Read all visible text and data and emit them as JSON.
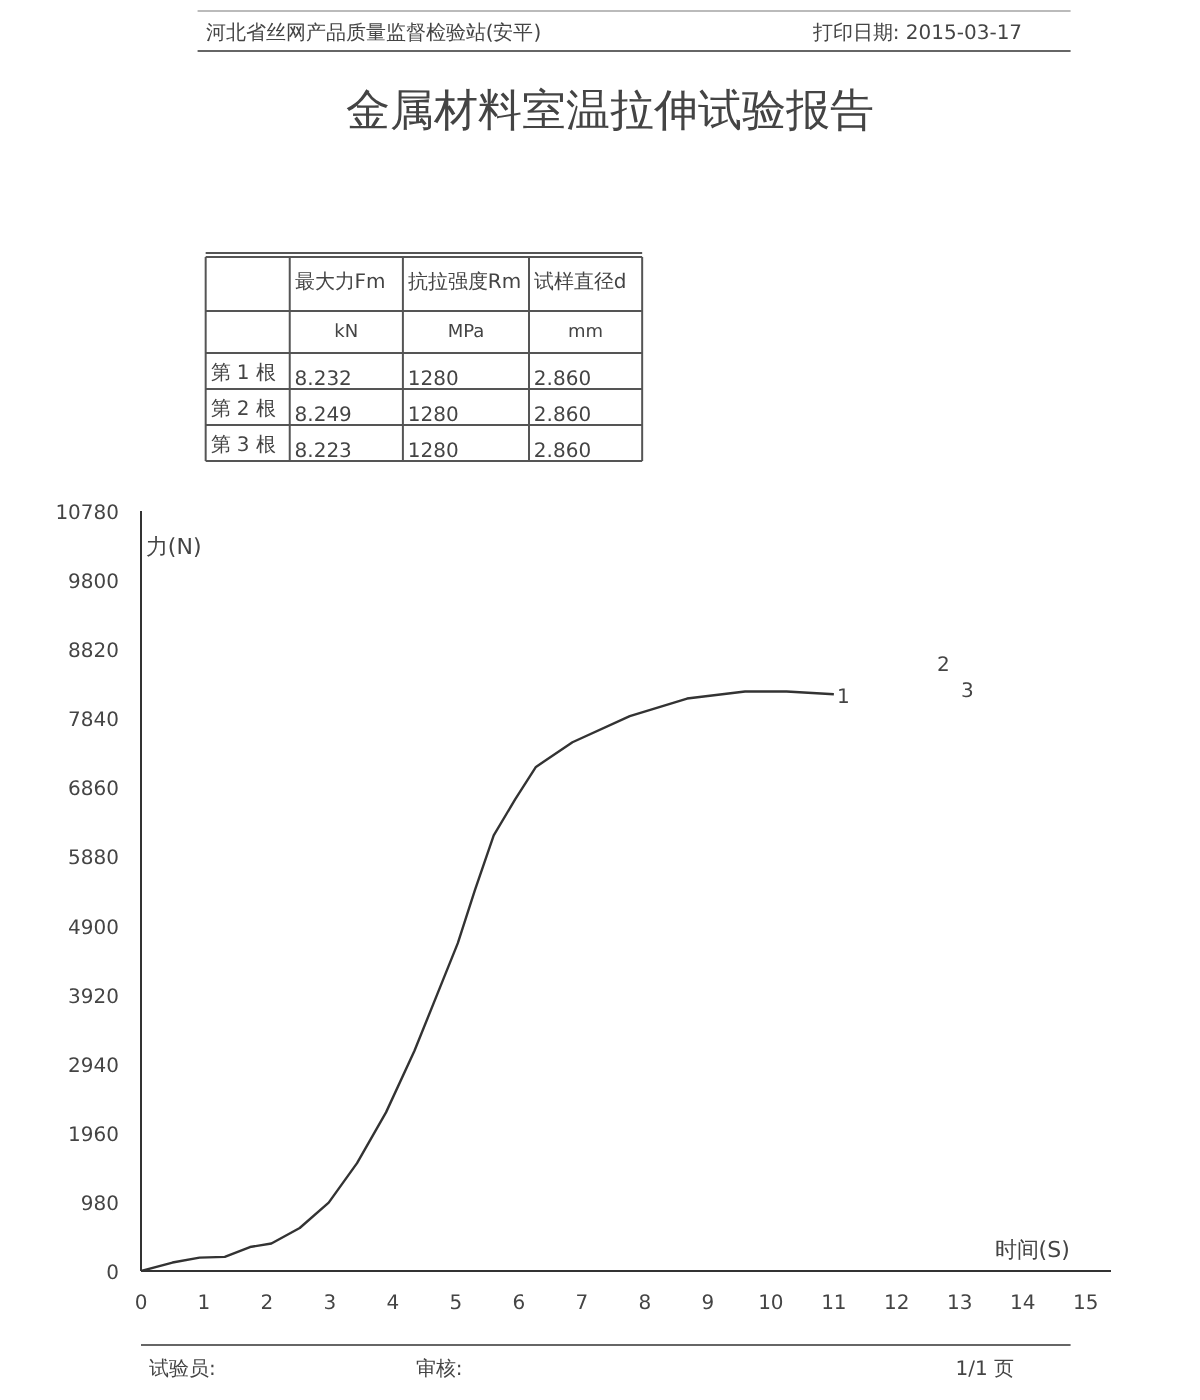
{
  "chart_data": [
    {
      "type": "other",
      "title": "金属材料室温拉伸试验报告",
      "annotations": [
        "河北省丝网产品质量监督检验站(安平)",
        "打印日期: 2015-03-17"
      ],
      "categories": [
        null,
        "最大力Fm",
        "抗拉强度Rm",
        "试样直径d"
      ],
      "y_categories": [
        null,
        "第 1 根",
        "第 2 根",
        "第 3 根"
      ],
      "cell_labels": [
        [
          "kN",
          "MPa",
          "mm"
        ],
        [
          "8.232",
          "1280",
          "2.860"
        ],
        [
          "8.249",
          "1280",
          "2.860"
        ],
        [
          "8.223",
          "1280",
          "2.860"
        ]
      ]
    },
    {
      "type": "line",
      "xlabel": "时间(S)",
      "ylabel": "力(N)",
      "x": [
        0,
        0.5,
        0.93,
        1.33,
        1.73,
        2.07,
        2.52,
        2.98,
        3.43,
        3.89,
        4.34,
        4.8,
        5.03,
        5.3,
        5.6,
        5.94,
        6.27,
        6.85,
        7.76,
        8.67,
        9.59,
        10.25,
        11.0
      ],
      "series": [
        {
          "color": "#333333",
          "values": [
            0,
            120,
            190,
            200,
            340,
            390,
            610,
            970,
            1530,
            2250,
            3120,
            4140,
            4650,
            5400,
            6180,
            6690,
            7150,
            7500,
            7870,
            8120,
            8220,
            8220,
            8180
          ]
        }
      ],
      "xlim": [
        0,
        15.4
      ],
      "xticks": [
        0,
        1,
        2,
        3,
        4,
        5,
        6,
        7,
        8,
        9,
        10,
        11,
        12,
        13,
        14,
        15
      ],
      "ylim": [
        0,
        10780
      ],
      "yticks": [
        0,
        980,
        1960,
        2940,
        3920,
        4900,
        5880,
        6860,
        7840,
        8820,
        9800,
        10780
      ],
      "grid": false,
      "marker": "none",
      "line_style": "solid",
      "annotations": [
        {
          "text": "1",
          "x": 11.05,
          "y": 8170
        },
        "2",
        "3",
        "试验员:",
        "审核:",
        "1/1 页"
      ]
    }
  ]
}
